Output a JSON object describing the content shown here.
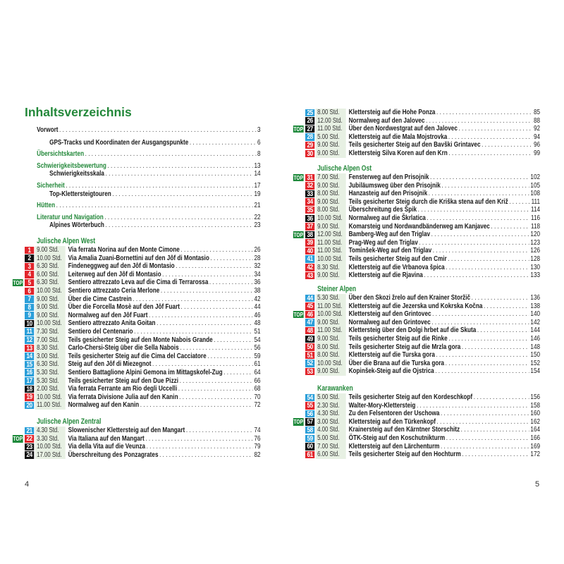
{
  "colors": {
    "red": "#e1252b",
    "blue": "#2b9fd9",
    "black": "#111111",
    "green": "#23883a",
    "top": "#1f8a3c"
  },
  "left": {
    "title": "Inhaltsverzeichnis",
    "toc": [
      {
        "label": "Vorwort",
        "page": "3",
        "level": "sub-black-main"
      },
      {
        "label": "GPS-Tracks und Koordinaten der Ausgangspunkte",
        "page": "6",
        "level": "sub"
      },
      {
        "label": "Übersichtskarten",
        "page": "8",
        "level": "main"
      },
      {
        "label": "Schwierigkeitsbewertung",
        "page": "13",
        "level": "main"
      },
      {
        "label": "Schwierigkeitsskala",
        "page": "14",
        "level": "sub"
      },
      {
        "label": "Sicherheit",
        "page": "17",
        "level": "main"
      },
      {
        "label": "Top-Klettersteigtouren",
        "page": "19",
        "level": "sub"
      },
      {
        "label": "Hütten",
        "page": "21",
        "level": "main"
      },
      {
        "label": "Literatur und Navigation",
        "page": "22",
        "level": "main"
      },
      {
        "label": "Alpines Wörterbuch",
        "page": "23",
        "level": "sub"
      }
    ],
    "sections": [
      {
        "heading": "Julische Alpen West",
        "routes": [
          {
            "num": "1",
            "diff": "red",
            "time": "9.00 Std.",
            "title": "Via ferrata Norina auf den Monte Cimone",
            "page": "26"
          },
          {
            "num": "2",
            "diff": "black",
            "time": "10.00 Std.",
            "title": "Via Amalia Zuani-Bornettini auf den Jôf di Montasio",
            "page": "28"
          },
          {
            "num": "3",
            "diff": "red",
            "time": "6.30 Std.",
            "title": "Findeneggweg auf den Jôf di Montasio",
            "page": "32"
          },
          {
            "num": "4",
            "diff": "red",
            "time": "6.00 Std.",
            "title": "Leiterweg auf den Jôf di Montasio",
            "page": "34"
          },
          {
            "num": "5",
            "diff": "red",
            "top": "TOP",
            "time": "6.30 Std.",
            "title": "Sentiero attrezzato Leva auf die Cima di Terrarossa",
            "page": "36"
          },
          {
            "num": "6",
            "diff": "red",
            "time": "10.00 Std.",
            "title": "Sentiero attrezzato Ceria Merlone",
            "page": "38"
          },
          {
            "num": "7",
            "diff": "blue",
            "time": "9.00 Std.",
            "title": "Über die Cime Castrein",
            "page": "42"
          },
          {
            "num": "8",
            "diff": "blue",
            "time": "9.00 Std.",
            "title": "Über die Forcella Mosè auf den Jôf Fuart",
            "page": "44"
          },
          {
            "num": "9",
            "diff": "blue",
            "time": "9.00 Std.",
            "title": "Normalweg auf den Jôf Fuart",
            "page": "46"
          },
          {
            "num": "10",
            "diff": "black",
            "time": "10.00 Std.",
            "title": "Sentiero attrezzato Anita Goitan",
            "page": "48"
          },
          {
            "num": "11",
            "diff": "blue",
            "time": "7.30 Std.",
            "title": "Sentiero del Centenario",
            "page": "51"
          },
          {
            "num": "12",
            "diff": "blue",
            "time": "7.00 Std.",
            "title": "Teils gesicherter Steig auf den Monte Nabois Grande",
            "page": "54"
          },
          {
            "num": "13",
            "diff": "red",
            "time": "8.30 Std.",
            "title": "Carlo-Chersi-Steig über die Sella Nabois",
            "page": "56"
          },
          {
            "num": "14",
            "diff": "blue",
            "time": "3.00 Std.",
            "title": "Teils gesicherter Steig auf die Cima del Cacciatore",
            "page": "59"
          },
          {
            "num": "15",
            "diff": "blue",
            "time": "6.30 Std.",
            "title": "Steig auf den Jôf di Miezegnot",
            "page": "61"
          },
          {
            "num": "16",
            "diff": "blue",
            "time": "5.30 Std.",
            "title": "Sentiero Battaglione Alpini Gemona im Mittagskofel-Zug",
            "page": "64"
          },
          {
            "num": "17",
            "diff": "blue",
            "time": "5.30 Std.",
            "title": "Teils gesicherter Steig auf den Due Pizzi",
            "page": "66"
          },
          {
            "num": "18",
            "diff": "black",
            "time": "2.00 Std.",
            "title": "Via ferrata Ferrante am Rio degli Uccelli",
            "page": "68"
          },
          {
            "num": "19",
            "diff": "red",
            "time": "10.00 Std.",
            "title": "Via ferrata Divisione Julia auf den Kanin",
            "page": "70"
          },
          {
            "num": "20",
            "diff": "blue",
            "time": "11.00 Std.",
            "title": "Normalweg auf den Kanin",
            "page": "72"
          }
        ]
      },
      {
        "heading": "Julische Alpen Zentral",
        "routes": [
          {
            "num": "21",
            "diff": "blue",
            "time": "4.30 Std.",
            "title": "Slowenischer Klettersteig auf den Mangart",
            "page": "74"
          },
          {
            "num": "22",
            "diff": "red",
            "top": "TOP",
            "time": "3.30 Std.",
            "title": "Via Italiana auf den Mangart",
            "page": "76"
          },
          {
            "num": "23",
            "diff": "black",
            "time": "10.00 Std.",
            "title": "Via della Vita auf die Veunza",
            "page": "79"
          },
          {
            "num": "24",
            "diff": "black",
            "time": "17.00 Std.",
            "title": "Überschreitung des Ponzagrates",
            "page": "82"
          }
        ]
      }
    ],
    "folio": "4"
  },
  "right": {
    "sections": [
      {
        "heading": "",
        "routes": [
          {
            "num": "25",
            "diff": "blue",
            "time": "8.00 Std.",
            "title": "Klettersteig auf die Hohe Ponza",
            "page": "85"
          },
          {
            "num": "26",
            "diff": "black",
            "time": "12.00 Std.",
            "title": "Normalweg auf den Jalovec",
            "page": "88"
          },
          {
            "num": "27",
            "diff": "black",
            "top": "TOP",
            "time": "11.00 Std.",
            "title": "Über den Nordwestgrat auf den Jalovec",
            "page": "92"
          },
          {
            "num": "28",
            "diff": "blue",
            "time": "5.00 Std.",
            "title": "Klettersteig auf die Mala Mojstrovka",
            "page": "94"
          },
          {
            "num": "29",
            "diff": "red",
            "time": "9.00 Std.",
            "title": "Teils gesicherter Steig auf den Bavški Grintavec",
            "page": "96"
          },
          {
            "num": "30",
            "diff": "red",
            "time": "9.00 Std.",
            "title": "Klettersteig Silva Koren auf den Krn",
            "page": "99"
          }
        ]
      },
      {
        "heading": "Julische Alpen Ost",
        "routes": [
          {
            "num": "31",
            "diff": "red",
            "top": "TOP",
            "time": "7.00 Std.",
            "title": "Fensterweg auf den Prisojnik",
            "page": "102"
          },
          {
            "num": "32",
            "diff": "red",
            "time": "9.00 Std.",
            "title": "Jubiläumsweg über den Prisojnik",
            "page": "105"
          },
          {
            "num": "33",
            "diff": "black",
            "time": "8.00 Std.",
            "title": "Hanzasteig auf den Prisojnik",
            "page": "108"
          },
          {
            "num": "34",
            "diff": "red",
            "time": "9.00 Std.",
            "title": "Teils gesicherter Steig durch die Kriška stena auf den Križ",
            "page": "111"
          },
          {
            "num": "35",
            "diff": "red",
            "time": "8.00 Std.",
            "title": "Überschreitung des Špik",
            "page": "114"
          },
          {
            "num": "36",
            "diff": "black",
            "time": "10.00 Std.",
            "title": "Normalweg auf die Škrlatica",
            "page": "116"
          },
          {
            "num": "37",
            "diff": "red",
            "time": "9.00 Std.",
            "title": "Komarsteig und Nordwandbänderweg am Kanjavec",
            "page": "118"
          },
          {
            "num": "38",
            "diff": "black",
            "top": "TOP",
            "time": "12.00 Std.",
            "title": "Bamberg-Weg auf den Triglav",
            "page": "120"
          },
          {
            "num": "39",
            "diff": "red",
            "time": "11.00 Std.",
            "title": "Prag-Weg auf den Triglav",
            "page": "123"
          },
          {
            "num": "40",
            "diff": "red",
            "time": "11.00 Std.",
            "title": "Tominšek-Weg auf den Triglav",
            "page": "126"
          },
          {
            "num": "41",
            "diff": "blue",
            "time": "10.00 Std.",
            "title": "Teils gesicherter Steig auf den Cmir",
            "page": "128"
          },
          {
            "num": "42",
            "diff": "red",
            "time": "8.30 Std.",
            "title": "Klettersteig auf die Vrbanova špica",
            "page": "130"
          },
          {
            "num": "43",
            "diff": "red",
            "time": "9.00 Std.",
            "title": "Klettersteig auf die Rjavina",
            "page": "133"
          }
        ]
      },
      {
        "heading": "Steiner Alpen",
        "routes": [
          {
            "num": "44",
            "diff": "blue",
            "time": "5.30 Std.",
            "title": "Über den Skozi žrelo auf den Krainer Storžič",
            "page": "136"
          },
          {
            "num": "45",
            "diff": "red",
            "time": "11.00 Std.",
            "title": "Klettersteig auf die Jezerska und Kokrska Kočna",
            "page": "138"
          },
          {
            "num": "46",
            "diff": "red",
            "top": "TOP",
            "time": "10.00 Std.",
            "title": "Klettersteig auf den Grintovec",
            "page": "140"
          },
          {
            "num": "47",
            "diff": "blue",
            "time": "9.00 Std.",
            "title": "Normalweg auf den Grintovec",
            "page": "142"
          },
          {
            "num": "48",
            "diff": "red",
            "time": "11.00 Std.",
            "title": "Klettersteig über den Dolgi hrbet auf die Skuta",
            "page": "144"
          },
          {
            "num": "49",
            "diff": "black",
            "time": "9.00 Std.",
            "title": "Teils gesicherter Steig auf die Rinke",
            "page": "146"
          },
          {
            "num": "50",
            "diff": "red",
            "time": "8.00 Std.",
            "title": "Teils gesicherter Steig auf die Mrzla gora",
            "page": "148"
          },
          {
            "num": "51",
            "diff": "red",
            "time": "8.00 Std.",
            "title": "Klettersteig auf die Turska gora",
            "page": "150"
          },
          {
            "num": "52",
            "diff": "blue",
            "time": "10.00 Std.",
            "title": "Über die Brana auf die Turska gora",
            "page": "152"
          },
          {
            "num": "53",
            "diff": "red",
            "time": "9.00 Std.",
            "title": "Kopinšek-Steig auf die Ojstrica",
            "page": "154"
          }
        ]
      },
      {
        "heading": "Karawanken",
        "routes": [
          {
            "num": "54",
            "diff": "blue",
            "time": "5.00 Std.",
            "title": "Teils gesicherter Steig auf den Kordeschkopf",
            "page": "156"
          },
          {
            "num": "55",
            "diff": "red",
            "time": "2.30 Std.",
            "title": "Walter-Mory-Klettersteig",
            "page": "158"
          },
          {
            "num": "56",
            "diff": "blue",
            "time": "4.30 Std.",
            "title": "Zu den Felsentoren der Uschowa",
            "page": "160"
          },
          {
            "num": "57",
            "diff": "black",
            "top": "TOP",
            "time": "3.00 Std.",
            "title": "Klettersteig auf den Türkenkopf",
            "page": "162"
          },
          {
            "num": "58",
            "diff": "blue",
            "time": "4.00 Std.",
            "title": "Krainersteig auf den Kärntner Storschitz",
            "page": "164"
          },
          {
            "num": "59",
            "diff": "blue",
            "time": "5.00 Std.",
            "title": "ÖTK-Steig auf den Koschutnikturm",
            "page": "166"
          },
          {
            "num": "60",
            "diff": "black",
            "time": "7.00 Std.",
            "title": "Klettersteig auf den Lärchenturm",
            "page": "169"
          },
          {
            "num": "61",
            "diff": "red",
            "time": "6.00 Std.",
            "title": "Teils gesicherter Steig auf den Hochturm",
            "page": "172"
          }
        ]
      }
    ],
    "folio": "5"
  }
}
